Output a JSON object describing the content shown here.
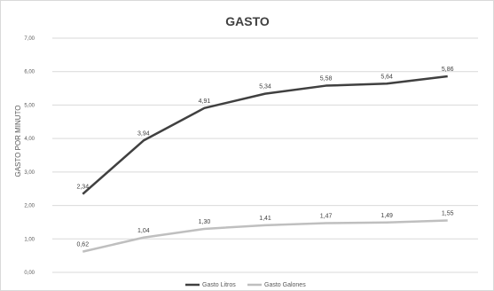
{
  "chart_data": {
    "type": "line",
    "title": "GASTO",
    "xlabel": "",
    "ylabel": "GASTO POR MINUTO",
    "ylim": [
      0,
      7
    ],
    "yticks": [
      "0,00",
      "1,00",
      "2,00",
      "3,00",
      "4,00",
      "5,00",
      "6,00",
      "7,00"
    ],
    "grid": true,
    "legend_position": "bottom",
    "x": [
      1,
      2,
      3,
      4,
      5,
      6,
      7
    ],
    "series": [
      {
        "name": "Gasto Litros",
        "color": "#404040",
        "values": [
          2.34,
          3.94,
          4.91,
          5.34,
          5.58,
          5.64,
          5.86
        ],
        "labels": [
          "2,34",
          "3,94",
          "4,91",
          "5,34",
          "5,58",
          "5,64",
          "5,86"
        ]
      },
      {
        "name": "Gasto Galones",
        "color": "#bfbfbf",
        "values": [
          0.62,
          1.04,
          1.3,
          1.41,
          1.47,
          1.49,
          1.55
        ],
        "labels": [
          "0,62",
          "1,04",
          "1,30",
          "1,41",
          "1,47",
          "1,49",
          "1,55"
        ]
      }
    ]
  }
}
